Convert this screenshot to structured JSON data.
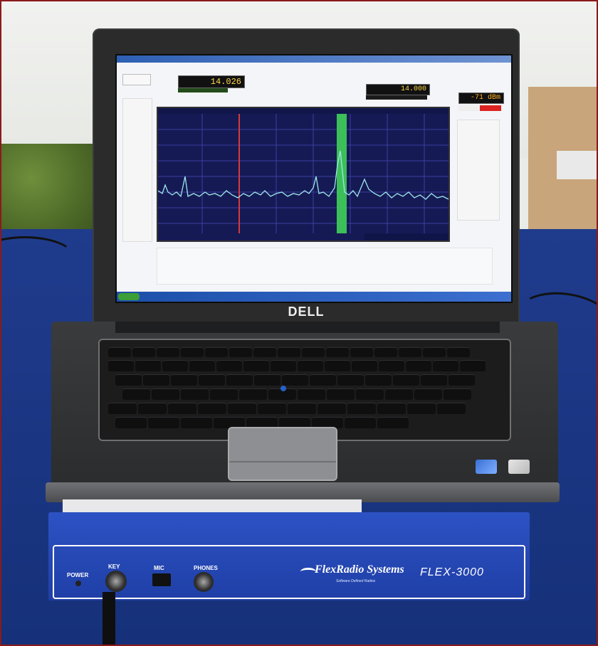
{
  "scene": {
    "background_colors": {
      "tent": "#eef0ec",
      "table": "#1f3b8c",
      "frame_border": "#8b1a1a"
    }
  },
  "laptop": {
    "brand": "DELL",
    "software": {
      "title_text": "",
      "vfo_a_freq": "14.026",
      "vfo_b_freq": "14.000",
      "vfo_a_unit": "",
      "signal_readout": "-71 dBm",
      "small_left_label": "",
      "filter_readout": "",
      "spectrum_color": "#151a55",
      "trace_color": "#9fe7ea",
      "passband_color": "#3cbf59"
    },
    "taskbar": {
      "start_label": ""
    }
  },
  "radio": {
    "brand": "FlexRadio Systems",
    "model": "FLEX-3000",
    "tagline": "Software Defined Radios",
    "labels": {
      "power": "POWER",
      "key": "KEY",
      "mic": "MIC",
      "phones": "PHONES"
    },
    "color": "#2546b8"
  },
  "icons": [
    "power-led-icon",
    "key-jack-icon",
    "mic-jack-icon",
    "phones-jack-icon",
    "flexradio-logo-icon",
    "windows-sticker-icon",
    "intel-sticker-icon"
  ]
}
